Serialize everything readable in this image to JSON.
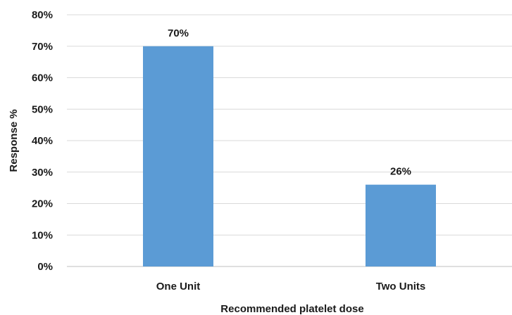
{
  "chart_data": {
    "type": "bar",
    "categories": [
      "One Unit",
      "Two Units"
    ],
    "values": [
      70,
      26
    ],
    "data_labels": [
      "70%",
      "26%"
    ],
    "title": "",
    "xlabel": "Recommended platelet dose",
    "ylabel": "Response %",
    "ylim": [
      0,
      80
    ],
    "yticks": [
      0,
      10,
      20,
      30,
      40,
      50,
      60,
      70,
      80
    ],
    "ytick_labels": [
      "0%",
      "10%",
      "20%",
      "30%",
      "40%",
      "50%",
      "60%",
      "70%",
      "80%"
    ],
    "grid": true,
    "legend": "none",
    "bar_color": "#5b9bd5"
  }
}
